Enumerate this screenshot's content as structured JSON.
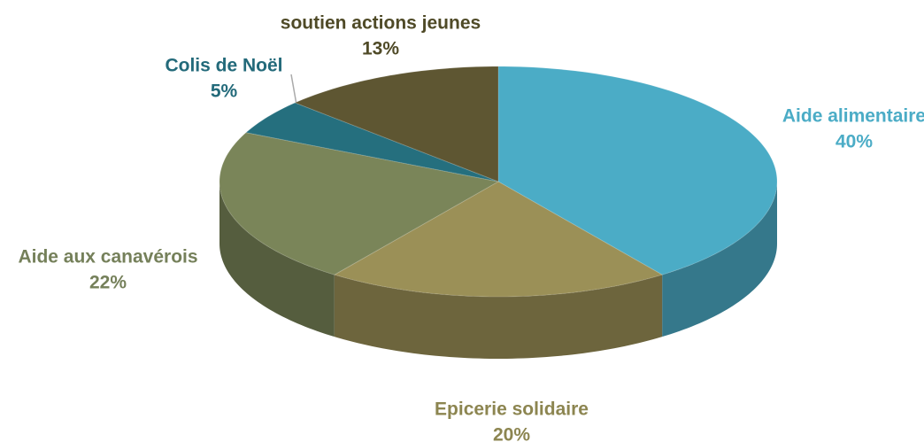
{
  "chart_data": {
    "type": "pie",
    "categories": [
      "Aide alimentaire",
      "Epicerie solidaire",
      "Aide aux canavérois",
      "Colis de Noël",
      "soutien actions jeunes"
    ],
    "values": [
      40,
      20,
      22,
      5,
      13
    ],
    "value_labels": [
      "40%",
      "20%",
      "22%",
      "5%",
      "13%"
    ],
    "colors": [
      "#4bacc6",
      "#9b9057",
      "#7a8559",
      "#256f7e",
      "#5e5632"
    ]
  }
}
